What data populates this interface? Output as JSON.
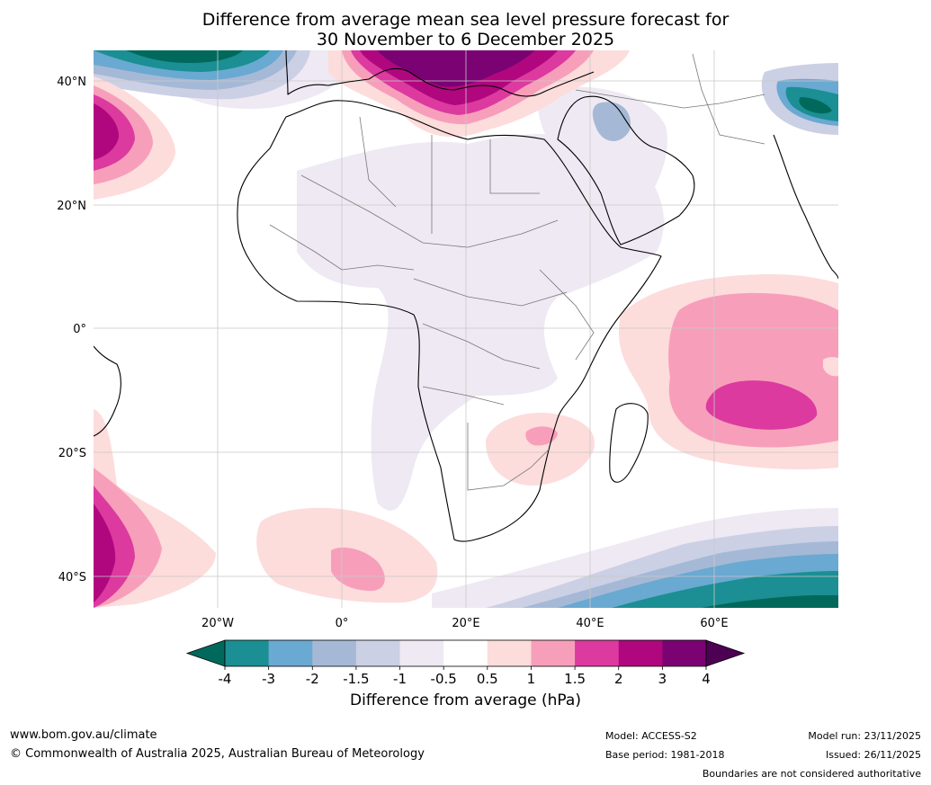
{
  "title_line1": "Difference from average mean sea level pressure forecast for",
  "title_line2": "30 November to 6 December 2025",
  "lat_labels": [
    "40°N",
    "20°N",
    "0°",
    "20°S",
    "40°S"
  ],
  "lon_labels": [
    "20°W",
    "0°",
    "20°E",
    "40°E",
    "60°E"
  ],
  "colorbar": {
    "title": "Difference from average (hPa)",
    "ticks": [
      "-4",
      "-3",
      "-2",
      "-1.5",
      "-1",
      "-0.5",
      "0.5",
      "1",
      "1.5",
      "2",
      "3",
      "4"
    ],
    "colors": [
      "#00695c",
      "#1b8f93",
      "#6aa9d1",
      "#a5b9d6",
      "#ccd0e5",
      "#eee9f3",
      "#ffffff",
      "#fddcdc",
      "#f79fba",
      "#dc3a9f",
      "#b0077f",
      "#7a0273",
      "#4d0153"
    ]
  },
  "footer": {
    "url": "www.bom.gov.au/climate",
    "copyright": "© Commonwealth of Australia 2025, Australian Bureau of Meteorology",
    "model": "Model: ACCESS-S2",
    "base_period": "Base period: 1981-2018",
    "model_run": "Model run: 23/11/2025",
    "issued": "Issued: 26/11/2025",
    "disclaimer": "Boundaries are not considered authoritative"
  }
}
